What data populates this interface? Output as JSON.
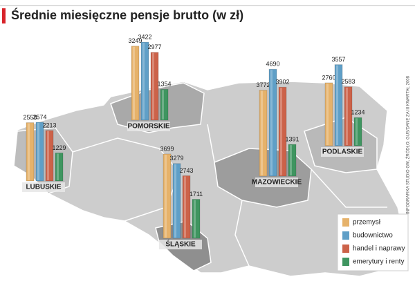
{
  "chart_data": {
    "type": "bar",
    "title": "Średnie miesięczne pensje brutto (w zł)",
    "source": "INFOGRAFIKA STUDIO GW, ŹRÓDŁO: GUS/DANE ZA III KWARTAŁ 2008",
    "categories": [
      "LUBUSKIE",
      "POMORSKIE",
      "ŚLĄSKIE",
      "MAZOWIECKIE",
      "PODLASKIE"
    ],
    "series": [
      {
        "name": "przemysł",
        "color": "#e6b26a",
        "values": [
          2558,
          3249,
          3699,
          3772,
          2760
        ]
      },
      {
        "name": "budownictwo",
        "color": "#5f9fc7",
        "values": [
          2574,
          3422,
          3279,
          4690,
          3557
        ]
      },
      {
        "name": "handel i naprawy",
        "color": "#cc6249",
        "values": [
          2213,
          2977,
          2743,
          3902,
          2583
        ]
      },
      {
        "name": "emerytury i renty",
        "color": "#3f9560",
        "values": [
          1229,
          1354,
          1711,
          1391,
          1234
        ]
      }
    ]
  }
}
